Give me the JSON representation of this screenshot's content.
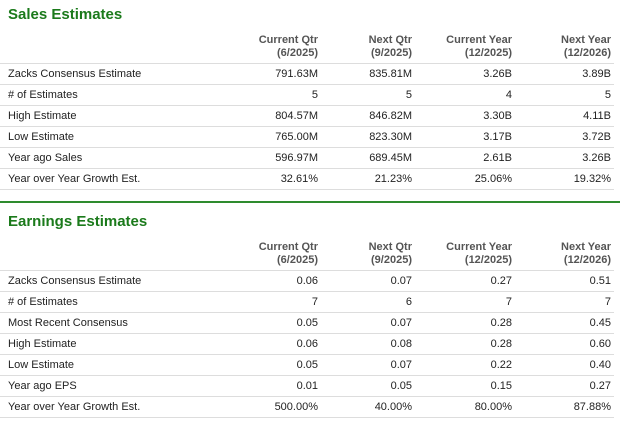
{
  "sections": [
    {
      "title": "Sales Estimates",
      "headers": [
        [
          "Current Qtr",
          "(6/2025)"
        ],
        [
          "Next Qtr",
          "(9/2025)"
        ],
        [
          "Current Year",
          "(12/2025)"
        ],
        [
          "Next Year",
          "(12/2026)"
        ]
      ],
      "rows": [
        [
          "Zacks Consensus Estimate",
          "791.63M",
          "835.81M",
          "3.26B",
          "3.89B"
        ],
        [
          "# of Estimates",
          "5",
          "5",
          "4",
          "5"
        ],
        [
          "High Estimate",
          "804.57M",
          "846.82M",
          "3.30B",
          "4.11B"
        ],
        [
          "Low Estimate",
          "765.00M",
          "823.30M",
          "3.17B",
          "3.72B"
        ],
        [
          "Year ago Sales",
          "596.97M",
          "689.45M",
          "2.61B",
          "3.26B"
        ],
        [
          "Year over Year Growth Est.",
          "32.61%",
          "21.23%",
          "25.06%",
          "19.32%"
        ]
      ]
    },
    {
      "title": "Earnings Estimates",
      "headers": [
        [
          "Current Qtr",
          "(6/2025)"
        ],
        [
          "Next Qtr",
          "(9/2025)"
        ],
        [
          "Current Year",
          "(12/2025)"
        ],
        [
          "Next Year",
          "(12/2026)"
        ]
      ],
      "rows": [
        [
          "Zacks Consensus Estimate",
          "0.06",
          "0.07",
          "0.27",
          "0.51"
        ],
        [
          "# of Estimates",
          "7",
          "6",
          "7",
          "7"
        ],
        [
          "Most Recent Consensus",
          "0.05",
          "0.07",
          "0.28",
          "0.45"
        ],
        [
          "High Estimate",
          "0.06",
          "0.08",
          "0.28",
          "0.60"
        ],
        [
          "Low Estimate",
          "0.05",
          "0.07",
          "0.22",
          "0.40"
        ],
        [
          "Year ago EPS",
          "0.01",
          "0.05",
          "0.15",
          "0.27"
        ],
        [
          "Year over Year Growth Est.",
          "500.00%",
          "40.00%",
          "80.00%",
          "87.88%"
        ]
      ]
    }
  ]
}
